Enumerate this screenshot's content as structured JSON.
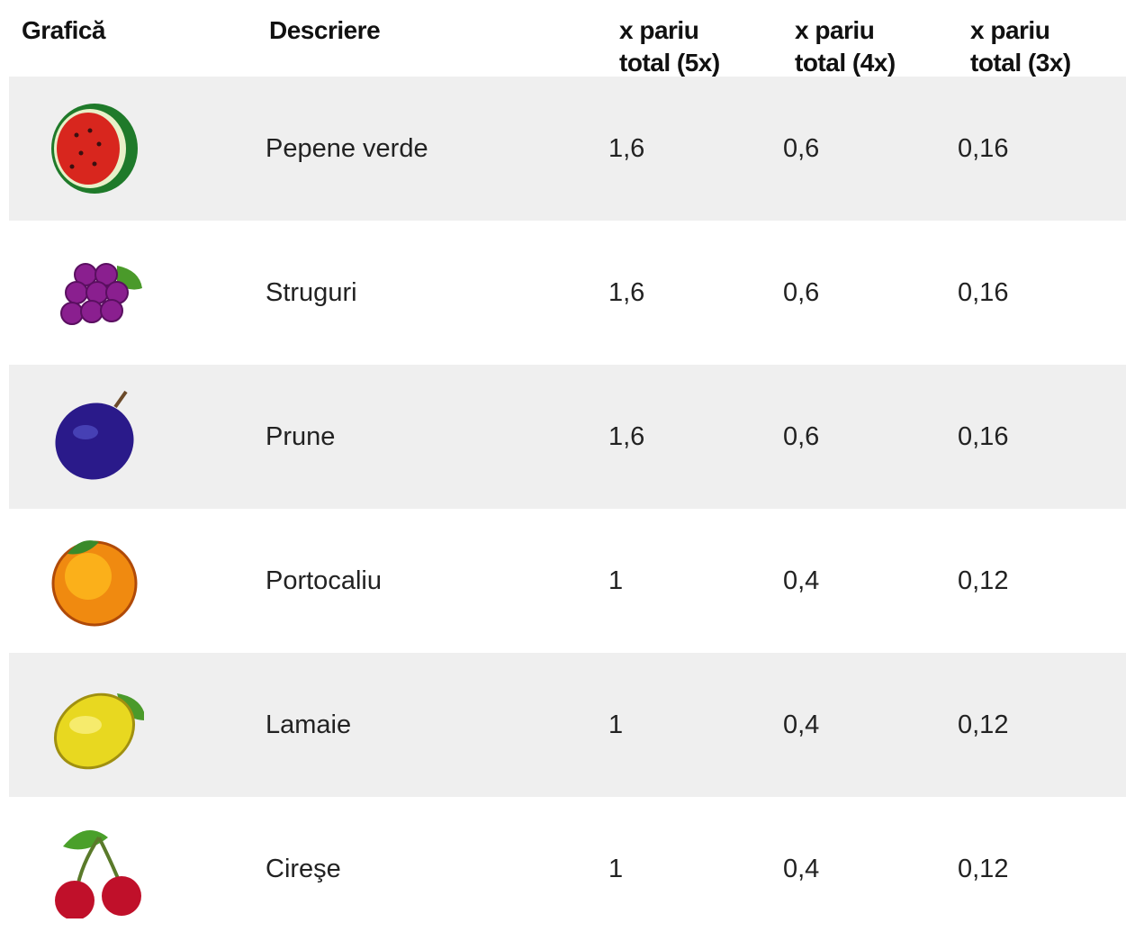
{
  "header": [
    "Grafică",
    "Descriere",
    "x pariu total (5x)",
    "x pariu total (4x)",
    "x pariu total (3x)"
  ],
  "rows": [
    [
      "Pepene verde",
      "1,6",
      "0,6",
      "0,16"
    ],
    [
      "Struguri",
      "1,6",
      "0,6",
      "0,16"
    ],
    [
      "Prune",
      "1,6",
      "0,6",
      "0,16"
    ],
    [
      "Portocaliu",
      "1",
      "0,4",
      "0,12"
    ],
    [
      "Lamaie",
      "1",
      "0,4",
      "0,12"
    ],
    [
      "Cireşe",
      "1",
      "0,4",
      "0,12"
    ]
  ]
}
